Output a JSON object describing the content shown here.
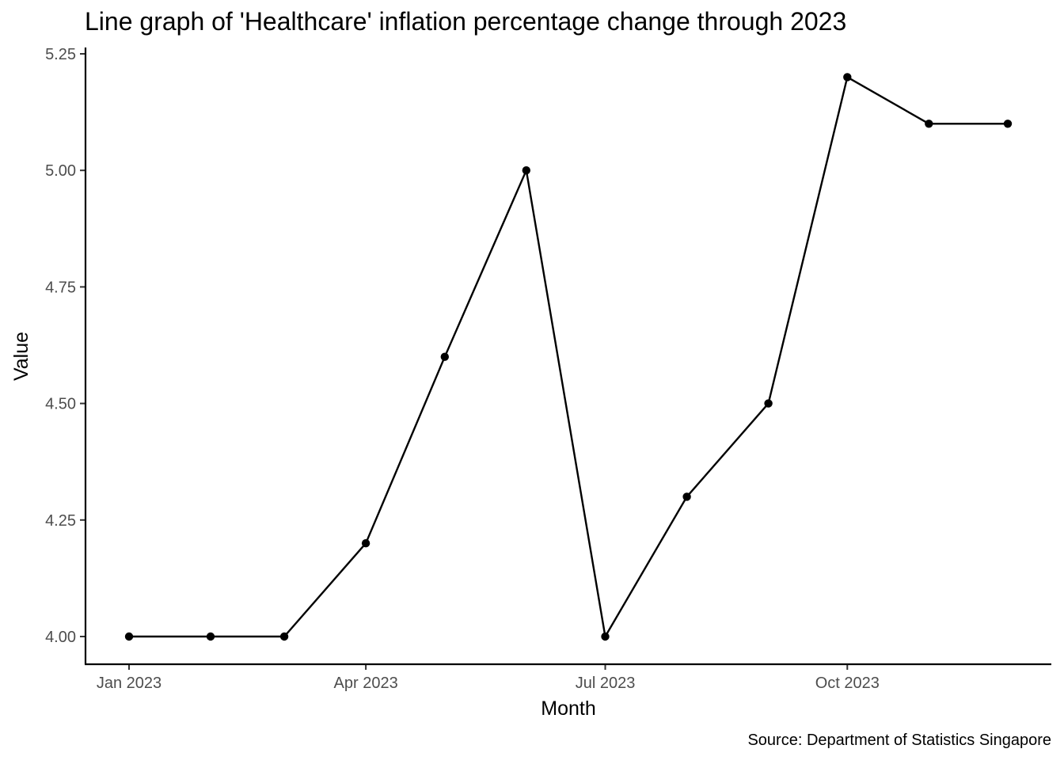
{
  "chart_data": {
    "type": "line",
    "title": "Line graph of 'Healthcare' inflation percentage change through 2023",
    "xlabel": "Month",
    "ylabel": "Value",
    "caption": "Source: Department of Statistics Singapore",
    "x": [
      "2023-01",
      "2023-02",
      "2023-03",
      "2023-04",
      "2023-05",
      "2023-06",
      "2023-07",
      "2023-08",
      "2023-09",
      "2023-10",
      "2023-11",
      "2023-12"
    ],
    "series": [
      {
        "values": [
          4.0,
          4.0,
          4.0,
          4.2,
          4.6,
          5.0,
          4.0,
          4.3,
          4.5,
          5.2,
          5.1,
          5.1
        ]
      }
    ],
    "x_ticks": [
      {
        "x": "2023-01",
        "label": "Jan 2023"
      },
      {
        "x": "2023-04",
        "label": "Apr 2023"
      },
      {
        "x": "2023-07",
        "label": "Jul 2023"
      },
      {
        "x": "2023-10",
        "label": "Oct 2023"
      }
    ],
    "y_ticks": [
      {
        "value": 4.0,
        "label": "4.00"
      },
      {
        "value": 4.25,
        "label": "4.25"
      },
      {
        "value": 4.5,
        "label": "4.50"
      },
      {
        "value": 4.75,
        "label": "4.75"
      },
      {
        "value": 5.0,
        "label": "5.00"
      },
      {
        "value": 5.25,
        "label": "5.25"
      }
    ],
    "ylim": [
      3.94,
      5.26
    ],
    "grid": false,
    "legend": "none",
    "colors": {
      "line": "#000000",
      "point": "#000000",
      "axis": "#000000",
      "tick_label": "#4d4d4d"
    }
  }
}
